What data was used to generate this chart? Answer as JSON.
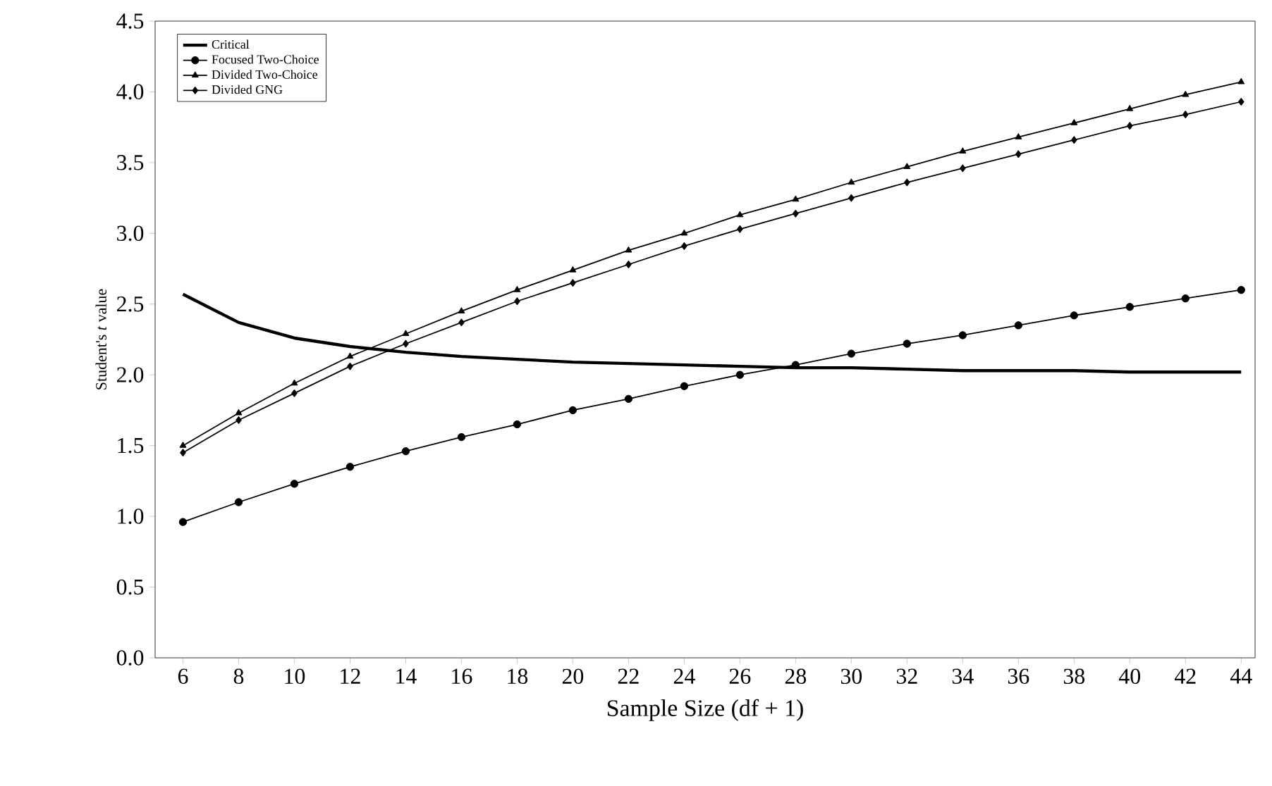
{
  "chart_data": {
    "type": "line",
    "xlabel": "Sample Size (df + 1)",
    "ylabel": "Student's *t* value",
    "x": [
      6,
      8,
      10,
      12,
      14,
      16,
      18,
      20,
      22,
      24,
      26,
      28,
      30,
      32,
      34,
      36,
      38,
      40,
      42,
      44
    ],
    "xlim": [
      5,
      44.5
    ],
    "xticks": [
      6,
      8,
      10,
      12,
      14,
      16,
      18,
      20,
      22,
      24,
      26,
      28,
      30,
      32,
      34,
      36,
      38,
      40,
      42,
      44
    ],
    "ylim": [
      0,
      4.5
    ],
    "yticks": [
      {
        "value": 0,
        "label": "0.0"
      },
      {
        "value": 0.5,
        "label": "0.5"
      },
      {
        "value": 1,
        "label": "1.0"
      },
      {
        "value": 1.5,
        "label": "1.5"
      },
      {
        "value": 2,
        "label": "2.0"
      },
      {
        "value": 2.5,
        "label": "2.5"
      },
      {
        "value": 3,
        "label": "3.0"
      },
      {
        "value": 3.5,
        "label": "3.5"
      },
      {
        "value": 4,
        "label": "4.0"
      },
      {
        "value": 4.5,
        "label": "4.5"
      }
    ],
    "grid": false,
    "legend": "top left",
    "series": [
      {
        "name": "Critical",
        "color": "#000000",
        "marker": "none",
        "values": [
          2.57,
          2.37,
          2.26,
          2.2,
          2.16,
          2.13,
          2.11,
          2.09,
          2.08,
          2.07,
          2.06,
          2.05,
          2.05,
          2.04,
          2.03,
          2.03,
          2.03,
          2.02,
          2.02,
          2.02
        ]
      },
      {
        "name": "Focused Two-Choice",
        "color": "#000000",
        "marker": "circle",
        "values": [
          0.96,
          1.1,
          1.23,
          1.35,
          1.46,
          1.56,
          1.65,
          1.75,
          1.83,
          1.92,
          2.0,
          2.07,
          2.15,
          2.22,
          2.28,
          2.35,
          2.42,
          2.48,
          2.54,
          2.6
        ]
      },
      {
        "name": "Divided Two-Choice",
        "color": "#000000",
        "marker": "triangle",
        "values": [
          1.5,
          1.73,
          1.94,
          2.13,
          2.29,
          2.45,
          2.6,
          2.74,
          2.88,
          3.0,
          3.13,
          3.24,
          3.36,
          3.47,
          3.58,
          3.68,
          3.78,
          3.88,
          3.98,
          4.07
        ]
      },
      {
        "name": "Divided GNG",
        "color": "#000000",
        "marker": "diamond",
        "values": [
          1.45,
          1.68,
          1.87,
          2.06,
          2.22,
          2.37,
          2.52,
          2.65,
          2.78,
          2.91,
          3.03,
          3.14,
          3.25,
          3.36,
          3.46,
          3.56,
          3.66,
          3.76,
          3.84,
          3.93
        ]
      }
    ]
  }
}
